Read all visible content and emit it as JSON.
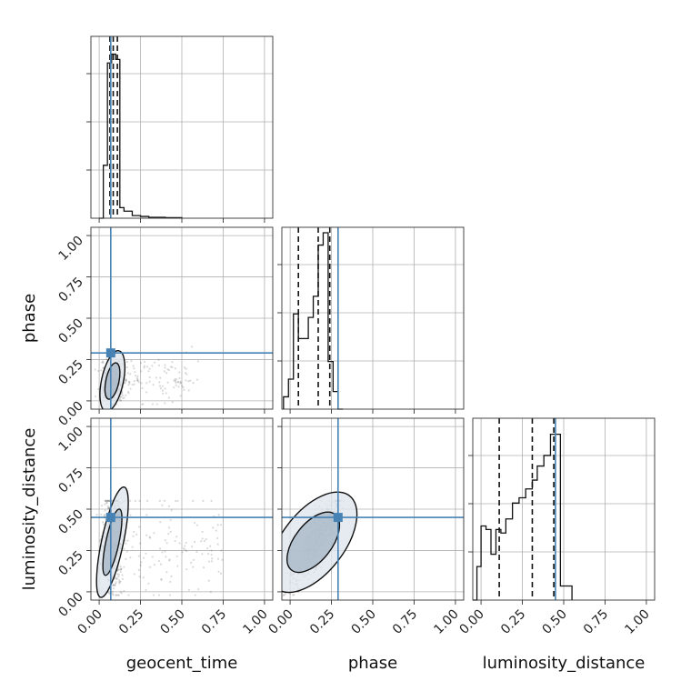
{
  "chart_data": {
    "type": "scatter",
    "parameters": [
      "geocent_time",
      "phase",
      "luminosity_distance"
    ],
    "axis_labels": {
      "geocent_time": "geocent_time",
      "phase": "phase",
      "luminosity_distance": "luminosity_distance"
    },
    "range": [
      -0.05,
      1.05
    ],
    "ticks": [
      0.0,
      0.25,
      0.5,
      0.75,
      1.0
    ],
    "tick_labels": [
      "0.00",
      "0.25",
      "0.50",
      "0.75",
      "1.00"
    ],
    "grid": true,
    "truth": {
      "geocent_time": 0.07,
      "phase": 0.29,
      "luminosity_distance": 0.45
    },
    "quantiles": {
      "geocent_time": [
        0.065,
        0.085,
        0.11
      ],
      "phase": [
        0.05,
        0.17,
        0.24
      ],
      "luminosity_distance": [
        0.11,
        0.31,
        0.44
      ]
    },
    "histograms": {
      "geocent_time": {
        "edges": [
          0.0,
          0.025,
          0.05,
          0.075,
          0.1,
          0.125,
          0.15,
          0.2,
          0.25,
          0.3,
          0.4,
          0.5
        ],
        "counts": [
          0,
          0.3,
          0.88,
          0.93,
          0.9,
          0.06,
          0.04,
          0.015,
          0.01,
          0.005,
          0.003
        ]
      },
      "phase": {
        "edges": [
          -0.04,
          -0.01,
          0.02,
          0.05,
          0.08,
          0.11,
          0.14,
          0.17,
          0.2,
          0.23,
          0.26,
          0.29,
          0.32
        ],
        "counts": [
          0.07,
          0.17,
          0.54,
          0.4,
          0.4,
          0.52,
          0.64,
          0.93,
          1.0,
          0.27,
          0.1,
          0.0
        ]
      },
      "luminosity_distance": {
        "edges": [
          -0.05,
          -0.025,
          0.0,
          0.03,
          0.06,
          0.09,
          0.12,
          0.15,
          0.19,
          0.23,
          0.27,
          0.31,
          0.34,
          0.38,
          0.42,
          0.45,
          0.48,
          0.52,
          0.55
        ],
        "counts": [
          0.0,
          0.19,
          0.42,
          0.4,
          0.26,
          0.4,
          0.38,
          0.46,
          0.55,
          0.58,
          0.63,
          0.68,
          0.76,
          0.82,
          0.94,
          0.94,
          0.08,
          0.08
        ]
      }
    },
    "scatter_clouds": [
      {
        "x": "geocent_time",
        "y": "phase",
        "core": [
          0.08,
          0.12
        ],
        "spread": [
          0.03,
          0.06
        ],
        "tail_to": 0.6
      },
      {
        "x": "geocent_time",
        "y": "luminosity_distance",
        "core": [
          0.08,
          0.3
        ],
        "spread": [
          0.03,
          0.14
        ],
        "tail_to": 0.75
      },
      {
        "x": "phase",
        "y": "luminosity_distance",
        "core": [
          0.14,
          0.3
        ],
        "spread": [
          0.07,
          0.12
        ],
        "tail_to": 0.3
      }
    ]
  }
}
